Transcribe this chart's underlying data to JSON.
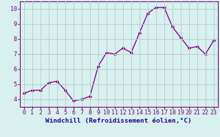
{
  "x": [
    0,
    1,
    2,
    3,
    4,
    5,
    6,
    7,
    8,
    9,
    10,
    11,
    12,
    13,
    14,
    15,
    16,
    17,
    18,
    19,
    20,
    21,
    22,
    23
  ],
  "y": [
    4.4,
    4.6,
    4.6,
    5.1,
    5.2,
    4.6,
    3.9,
    4.0,
    4.2,
    6.2,
    7.1,
    7.0,
    7.4,
    7.1,
    8.4,
    9.7,
    10.1,
    10.1,
    8.8,
    8.1,
    7.4,
    7.5,
    7.0,
    7.9
  ],
  "line_color": "#880088",
  "marker": "D",
  "marker_size": 2.2,
  "bg_color": "#d8f0ee",
  "grid_color": "#b8d0cc",
  "xlabel": "Windchill (Refroidissement éolien,°C)",
  "ylabel": "",
  "xlim": [
    -0.5,
    23.5
  ],
  "ylim": [
    3.5,
    10.5
  ],
  "yticks": [
    4,
    5,
    6,
    7,
    8,
    9,
    10
  ],
  "xticks": [
    0,
    1,
    2,
    3,
    4,
    5,
    6,
    7,
    8,
    9,
    10,
    11,
    12,
    13,
    14,
    15,
    16,
    17,
    18,
    19,
    20,
    21,
    22,
    23
  ],
  "axis_color": "#770077",
  "xlabel_color": "#220099",
  "xlabel_fontsize": 6.8,
  "tick_fontsize": 6.0,
  "tick_color": "#770077",
  "linewidth": 1.0
}
